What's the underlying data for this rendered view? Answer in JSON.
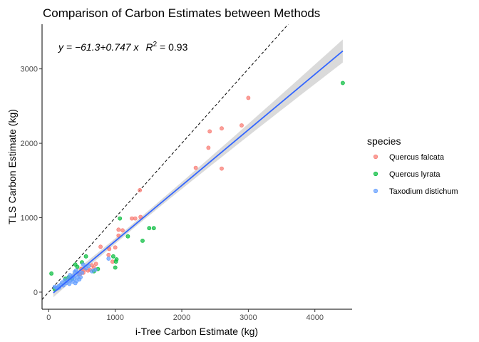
{
  "chart_data": {
    "type": "scatter",
    "title": "Comparison of Carbon Estimates between Methods",
    "xlabel": "i-Tree Carbon Estimate (kg)",
    "ylabel": "TLS Carbon Estimate (kg)",
    "xlim": [
      -100,
      4560
    ],
    "ylim": [
      -230,
      3600
    ],
    "x_ticks": [
      0,
      1000,
      2000,
      3000,
      4000
    ],
    "y_ticks": [
      0,
      1000,
      2000,
      3000
    ],
    "grid": false,
    "legend": {
      "title": "species",
      "placement": "right",
      "entries": [
        "Quercus falcata",
        "Quercus lyrata",
        "Taxodium distichum"
      ]
    },
    "annotation": {
      "equation": "y = −61.3+0.747 x",
      "r2_symbol": "R",
      "r2_exp": "2",
      "r2_value": " = 0.93"
    },
    "fit": {
      "intercept": -61.3,
      "slope": 0.747,
      "x_range": [
        70,
        4420
      ],
      "ci_halfwidth_min": 35,
      "ci_halfwidth_max": 155,
      "color": "#3366ff",
      "ci_color": "#d3d3d3"
    },
    "reference_line": {
      "slope": 1,
      "intercept": 0,
      "style": "dashed",
      "color": "#000000"
    },
    "series": [
      {
        "name": "Quercus falcata",
        "color": "#f8766d",
        "points": [
          [
            3000,
            2610
          ],
          [
            2900,
            2240
          ],
          [
            2600,
            2200
          ],
          [
            2420,
            2160
          ],
          [
            2400,
            1940
          ],
          [
            2210,
            1670
          ],
          [
            2600,
            1660
          ],
          [
            1370,
            1370
          ],
          [
            1380,
            1010
          ],
          [
            1300,
            990
          ],
          [
            1250,
            990
          ],
          [
            1050,
            840
          ],
          [
            1110,
            830
          ],
          [
            1050,
            760
          ],
          [
            1000,
            600
          ],
          [
            910,
            580
          ],
          [
            960,
            410
          ],
          [
            900,
            500
          ],
          [
            780,
            610
          ],
          [
            710,
            380
          ],
          [
            680,
            330
          ],
          [
            650,
            360
          ],
          [
            620,
            300
          ],
          [
            590,
            290
          ],
          [
            540,
            300
          ],
          [
            520,
            260
          ],
          [
            490,
            310
          ],
          [
            470,
            240
          ]
        ]
      },
      {
        "name": "Quercus lyrata",
        "color": "#00ba38",
        "points": [
          [
            4420,
            2810
          ],
          [
            1070,
            990
          ],
          [
            1510,
            860
          ],
          [
            1580,
            860
          ],
          [
            1410,
            690
          ],
          [
            1190,
            750
          ],
          [
            1020,
            440
          ],
          [
            1010,
            410
          ],
          [
            1000,
            330
          ],
          [
            970,
            480
          ],
          [
            740,
            310
          ],
          [
            680,
            280
          ],
          [
            560,
            480
          ],
          [
            500,
            400
          ],
          [
            430,
            340
          ],
          [
            400,
            370
          ],
          [
            350,
            180
          ],
          [
            300,
            200
          ],
          [
            250,
            180
          ],
          [
            40,
            250
          ],
          [
            90,
            40
          ]
        ]
      },
      {
        "name": "Taxodium distichum",
        "color": "#619cff",
        "points": [
          [
            900,
            450
          ],
          [
            700,
            300
          ],
          [
            650,
            280
          ],
          [
            600,
            350
          ],
          [
            560,
            320
          ],
          [
            520,
            370
          ],
          [
            500,
            260
          ],
          [
            480,
            200
          ],
          [
            460,
            170
          ],
          [
            450,
            240
          ],
          [
            430,
            200
          ],
          [
            420,
            150
          ],
          [
            410,
            290
          ],
          [
            400,
            120
          ],
          [
            390,
            270
          ],
          [
            380,
            180
          ],
          [
            370,
            220
          ],
          [
            360,
            140
          ],
          [
            350,
            200
          ],
          [
            330,
            160
          ],
          [
            320,
            230
          ],
          [
            310,
            110
          ],
          [
            300,
            190
          ],
          [
            280,
            150
          ],
          [
            260,
            120
          ],
          [
            240,
            160
          ],
          [
            220,
            90
          ],
          [
            200,
            130
          ],
          [
            180,
            100
          ],
          [
            160,
            60
          ],
          [
            150,
            80
          ],
          [
            130,
            50
          ],
          [
            110,
            60
          ],
          [
            90,
            70
          ]
        ]
      }
    ]
  }
}
